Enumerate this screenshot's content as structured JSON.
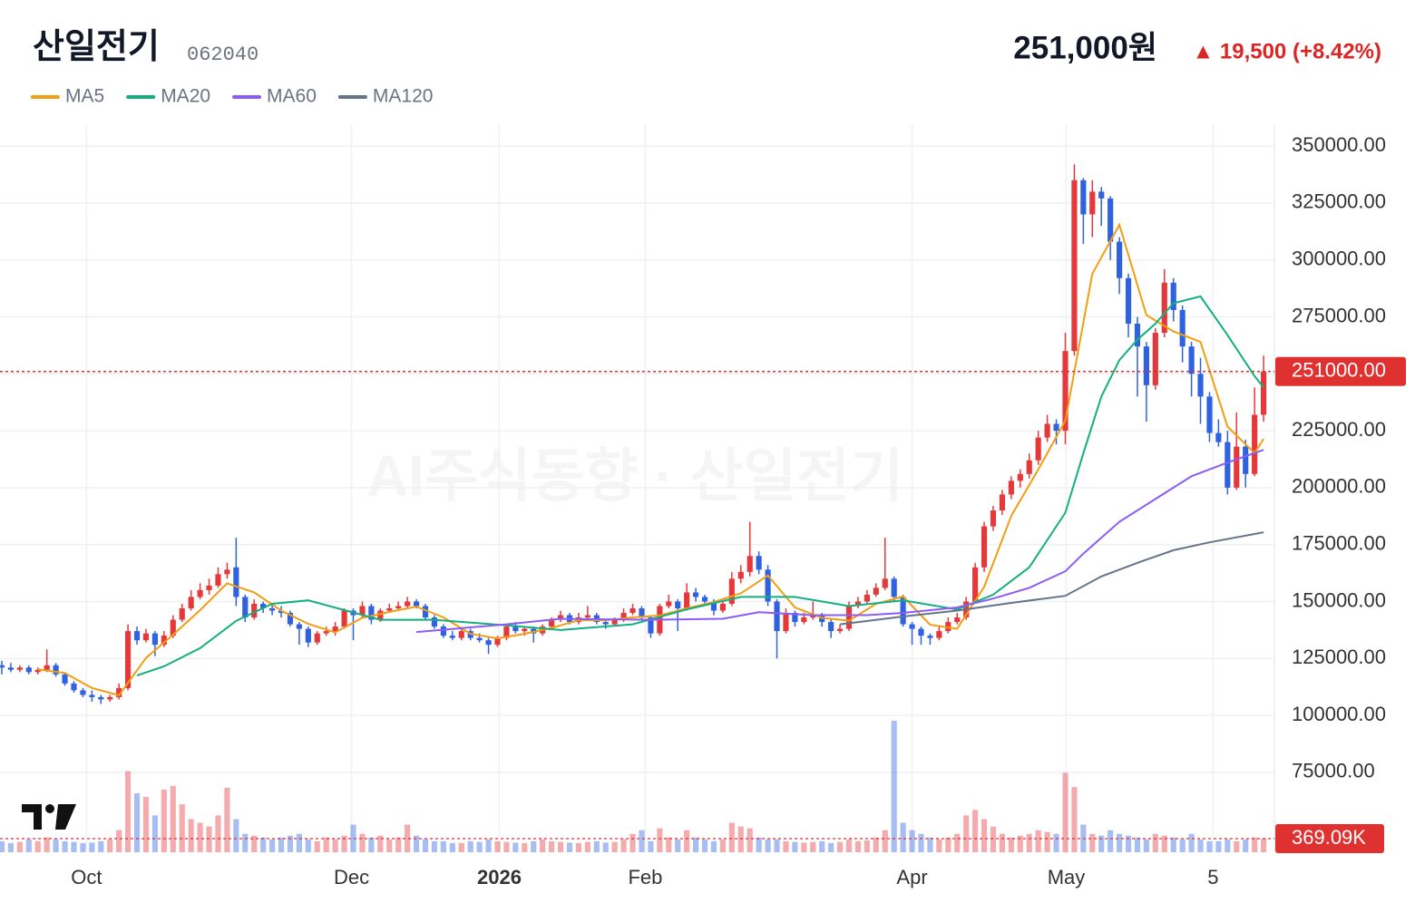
{
  "chart_data": {
    "type": "candlestick",
    "title": "산일전기",
    "subtitle": "062040",
    "price_text": "251,000원",
    "change_text": "▲ 19,500 (+8.42%)",
    "watermark": "AI주식동향 · 산일전기",
    "up_color": "#e5383b",
    "down_color": "#2f62e0",
    "xlim": [
      -0.2,
      141.2
    ],
    "xticks": [
      {
        "value": 9.4,
        "label": "Oct"
      },
      {
        "value": 38.8,
        "label": "Dec"
      },
      {
        "value": 55.2,
        "label": "2026",
        "bold": true
      },
      {
        "value": 71.4,
        "label": "Feb"
      },
      {
        "value": 101,
        "label": "Apr"
      },
      {
        "value": 118.1,
        "label": "May"
      },
      {
        "value": 134.4,
        "label": "5"
      }
    ],
    "ylim": [
      39900,
      359600
    ],
    "yticks": [
      {
        "value": 75000,
        "label": "75000.00"
      },
      {
        "value": 100000,
        "label": "100000.00"
      },
      {
        "value": 125000,
        "label": "125000.00"
      },
      {
        "value": 150000,
        "label": "150000.00"
      },
      {
        "value": 175000,
        "label": "175000.00"
      },
      {
        "value": 200000,
        "label": "200000.00"
      },
      {
        "value": 225000,
        "label": "225000.00"
      },
      {
        "value": 250000,
        "label": "250000.00"
      },
      {
        "value": 275000,
        "label": "275000.00"
      },
      {
        "value": 300000,
        "label": "300000.00"
      },
      {
        "value": 325000,
        "label": "325000.00"
      },
      {
        "value": 350000,
        "label": "350000.00"
      }
    ],
    "grid": true,
    "price_line": {
      "value": 251000,
      "label": "251000.00",
      "color": "#e03131"
    },
    "ohlc": [
      [
        122000,
        124000,
        118000,
        121000
      ],
      [
        121000,
        123000,
        119000,
        120000
      ],
      [
        120000,
        122000,
        119000,
        121000
      ],
      [
        121000,
        122000,
        118000,
        119000
      ],
      [
        119000,
        121000,
        118000,
        120000
      ],
      [
        120000,
        129000,
        119000,
        122000
      ],
      [
        122000,
        123000,
        117000,
        118000
      ],
      [
        118000,
        119000,
        113000,
        114000
      ],
      [
        114000,
        115000,
        110000,
        111000
      ],
      [
        111000,
        112000,
        108000,
        109000
      ],
      [
        109000,
        111000,
        106000,
        108000
      ],
      [
        108000,
        109000,
        105000,
        107000
      ],
      [
        107000,
        109000,
        106000,
        108000
      ],
      [
        108000,
        114000,
        107000,
        112000
      ],
      [
        112000,
        140000,
        111000,
        137000
      ],
      [
        137000,
        139000,
        131000,
        133000
      ],
      [
        133000,
        138000,
        132000,
        136000
      ],
      [
        136000,
        137000,
        126000,
        131000
      ],
      [
        131000,
        137000,
        130000,
        135000
      ],
      [
        135000,
        144000,
        134000,
        142000
      ],
      [
        142000,
        149000,
        141000,
        147000
      ],
      [
        147000,
        155000,
        146000,
        152000
      ],
      [
        152000,
        158000,
        151000,
        155000
      ],
      [
        155000,
        160000,
        153000,
        157000
      ],
      [
        157000,
        165000,
        156000,
        162000
      ],
      [
        162000,
        167000,
        160000,
        164000
      ],
      [
        165000,
        178000,
        148000,
        152000
      ],
      [
        152000,
        153000,
        141000,
        143000
      ],
      [
        143000,
        151000,
        142000,
        149000
      ],
      [
        149000,
        150000,
        145000,
        147000
      ],
      [
        147000,
        149000,
        144000,
        146000
      ],
      [
        146000,
        148000,
        143000,
        145000
      ],
      [
        145000,
        146000,
        139000,
        140000
      ],
      [
        140000,
        141000,
        131000,
        138000
      ],
      [
        138000,
        139000,
        130000,
        132000
      ],
      [
        132000,
        137000,
        131000,
        136000
      ],
      [
        136000,
        139000,
        135000,
        137000
      ],
      [
        137000,
        141000,
        135000,
        139000
      ],
      [
        139000,
        147000,
        138000,
        146000
      ],
      [
        146000,
        147000,
        133000,
        144000
      ],
      [
        144000,
        150000,
        143000,
        148000
      ],
      [
        148000,
        149000,
        140000,
        142000
      ],
      [
        142000,
        147000,
        141000,
        146000
      ],
      [
        146000,
        149000,
        145000,
        147000
      ],
      [
        147000,
        150000,
        146000,
        148000
      ],
      [
        148000,
        152000,
        147000,
        150000
      ],
      [
        150000,
        151000,
        147000,
        148000
      ],
      [
        148000,
        149000,
        142000,
        143000
      ],
      [
        143000,
        144000,
        138000,
        139000
      ],
      [
        139000,
        140000,
        134000,
        135000
      ],
      [
        135000,
        137000,
        133000,
        134000
      ],
      [
        134000,
        138000,
        133000,
        137000
      ],
      [
        137000,
        138000,
        133000,
        134000
      ],
      [
        134000,
        136000,
        132000,
        133000
      ],
      [
        133000,
        134000,
        127000,
        131000
      ],
      [
        131000,
        135000,
        130000,
        134000
      ],
      [
        134000,
        140000,
        133000,
        139000
      ],
      [
        139000,
        141000,
        136000,
        137000
      ],
      [
        137000,
        139000,
        135000,
        138000
      ],
      [
        138000,
        139000,
        132000,
        136000
      ],
      [
        136000,
        140000,
        135000,
        139000
      ],
      [
        139000,
        143000,
        138000,
        142000
      ],
      [
        142000,
        146000,
        141000,
        144000
      ],
      [
        144000,
        145000,
        140000,
        141000
      ],
      [
        141000,
        145000,
        140000,
        143000
      ],
      [
        143000,
        148000,
        142000,
        144000
      ],
      [
        144000,
        145000,
        140000,
        141000
      ],
      [
        141000,
        142000,
        138000,
        140000
      ],
      [
        140000,
        143000,
        139000,
        142000
      ],
      [
        142000,
        147000,
        141000,
        145000
      ],
      [
        145000,
        149000,
        144000,
        147000
      ],
      [
        147000,
        148000,
        142000,
        143000
      ],
      [
        143000,
        144000,
        134000,
        136000
      ],
      [
        136000,
        149000,
        135000,
        148000
      ],
      [
        148000,
        153000,
        147000,
        150000
      ],
      [
        150000,
        151000,
        137000,
        147000
      ],
      [
        147000,
        158000,
        146000,
        154000
      ],
      [
        154000,
        156000,
        150000,
        152000
      ],
      [
        152000,
        153000,
        148000,
        150000
      ],
      [
        150000,
        151000,
        144000,
        146000
      ],
      [
        146000,
        150000,
        145000,
        149000
      ],
      [
        149000,
        163000,
        148000,
        160000
      ],
      [
        160000,
        166000,
        158000,
        163000
      ],
      [
        163000,
        185000,
        161000,
        170000
      ],
      [
        170000,
        172000,
        162000,
        164000
      ],
      [
        164000,
        166000,
        148000,
        150000
      ],
      [
        150000,
        151000,
        125000,
        137000
      ],
      [
        137000,
        147000,
        136000,
        145000
      ],
      [
        145000,
        146000,
        139000,
        141000
      ],
      [
        141000,
        145000,
        140000,
        143000
      ],
      [
        143000,
        150000,
        142000,
        144000
      ],
      [
        144000,
        145000,
        139000,
        141000
      ],
      [
        141000,
        142000,
        134000,
        137000
      ],
      [
        137000,
        140000,
        136000,
        138000
      ],
      [
        138000,
        150000,
        137000,
        148000
      ],
      [
        148000,
        152000,
        147000,
        150000
      ],
      [
        150000,
        155000,
        149000,
        153000
      ],
      [
        153000,
        158000,
        152000,
        156000
      ],
      [
        156000,
        178000,
        155000,
        160000
      ],
      [
        160000,
        161000,
        150000,
        152000
      ],
      [
        152000,
        153000,
        139000,
        140000
      ],
      [
        140000,
        141000,
        131000,
        138000
      ],
      [
        138000,
        139000,
        131000,
        135000
      ],
      [
        135000,
        136000,
        131000,
        134000
      ],
      [
        134000,
        139000,
        133000,
        137000
      ],
      [
        137000,
        143000,
        136000,
        141000
      ],
      [
        141000,
        145000,
        140000,
        143000
      ],
      [
        143000,
        152000,
        142000,
        150000
      ],
      [
        150000,
        167000,
        149000,
        165000
      ],
      [
        165000,
        185000,
        163000,
        183000
      ],
      [
        183000,
        192000,
        181000,
        190000
      ],
      [
        190000,
        199000,
        188000,
        197000
      ],
      [
        197000,
        205000,
        195000,
        203000
      ],
      [
        203000,
        208000,
        200000,
        206000
      ],
      [
        206000,
        215000,
        204000,
        212000
      ],
      [
        212000,
        225000,
        210000,
        222000
      ],
      [
        222000,
        232000,
        220000,
        228000
      ],
      [
        228000,
        230000,
        219000,
        225000
      ],
      [
        225000,
        268000,
        219000,
        260000
      ],
      [
        260000,
        342000,
        258000,
        335000
      ],
      [
        335000,
        336000,
        307000,
        320000
      ],
      [
        320000,
        335000,
        310000,
        330000
      ],
      [
        330000,
        332000,
        315000,
        327000
      ],
      [
        327000,
        328000,
        300000,
        308000
      ],
      [
        308000,
        310000,
        285000,
        292000
      ],
      [
        292000,
        294000,
        266000,
        272000
      ],
      [
        272000,
        275000,
        240000,
        262000
      ],
      [
        262000,
        264000,
        229000,
        245000
      ],
      [
        245000,
        270000,
        243000,
        268000
      ],
      [
        268000,
        296000,
        266000,
        290000
      ],
      [
        290000,
        292000,
        273000,
        278000
      ],
      [
        278000,
        280000,
        255000,
        262000
      ],
      [
        262000,
        264000,
        240000,
        250000
      ],
      [
        250000,
        257000,
        228000,
        240000
      ],
      [
        240000,
        242000,
        220000,
        224000
      ],
      [
        224000,
        230000,
        218000,
        220000
      ],
      [
        220000,
        225000,
        197000,
        200000
      ],
      [
        200000,
        233000,
        199000,
        218000
      ],
      [
        218000,
        221000,
        200000,
        206000
      ],
      [
        206000,
        244000,
        205000,
        232000
      ],
      [
        232000,
        258000,
        229000,
        251000
      ]
    ],
    "volume": {
      "values": [
        300000,
        250000,
        280000,
        350000,
        300000,
        400000,
        350000,
        300000,
        280000,
        250000,
        260000,
        300000,
        350000,
        600000,
        2200000,
        1600000,
        1500000,
        1000000,
        1700000,
        1800000,
        1300000,
        900000,
        800000,
        700000,
        1000000,
        1750000,
        900000,
        500000,
        450000,
        400000,
        350000,
        400000,
        450000,
        500000,
        350000,
        300000,
        400000,
        350000,
        450000,
        750000,
        500000,
        400000,
        450000,
        350000,
        400000,
        750000,
        450000,
        350000,
        300000,
        300000,
        250000,
        250000,
        300000,
        280000,
        350000,
        300000,
        280000,
        260000,
        250000,
        300000,
        350000,
        300000,
        280000,
        260000,
        250000,
        280000,
        300000,
        260000,
        280000,
        350000,
        500000,
        600000,
        300000,
        650000,
        400000,
        350000,
        600000,
        400000,
        350000,
        300000,
        350000,
        800000,
        700000,
        650000,
        400000,
        350000,
        350000,
        300000,
        280000,
        260000,
        280000,
        300000,
        250000,
        280000,
        350000,
        300000,
        320000,
        400000,
        600000,
        3570000,
        800000,
        600000,
        500000,
        400000,
        350000,
        400000,
        500000,
        1000000,
        1150000,
        900000,
        700000,
        500000,
        400000,
        450000,
        500000,
        600000,
        550000,
        500000,
        2160000,
        1770000,
        750000,
        500000,
        450000,
        600000,
        500000,
        450000,
        400000,
        350000,
        500000,
        450000,
        400000,
        350000,
        500000,
        350000,
        300000,
        300000,
        350000,
        300000,
        350000,
        400000,
        369090
      ],
      "last_label": "369.09K"
    },
    "series": [
      {
        "name": "MA5",
        "color": "#f29d12",
        "x": [
          4,
          7,
          10,
          13,
          16,
          19,
          22,
          25,
          28,
          31,
          34,
          37,
          40,
          43,
          46,
          49,
          52,
          55,
          58,
          61,
          64,
          67,
          70,
          73,
          76,
          79,
          82,
          85,
          88,
          91,
          94,
          97,
          100,
          103,
          106,
          109,
          112,
          115,
          118,
          121,
          124,
          127,
          130,
          133,
          136,
          139,
          140
        ],
        "values": [
          120200,
          118600,
          112000,
          108800,
          125200,
          135400,
          146200,
          158000,
          154000,
          146000,
          140200,
          136400,
          142800,
          145400,
          147800,
          143000,
          135800,
          133800,
          135800,
          138400,
          141800,
          141800,
          143000,
          143800,
          147000,
          149800,
          153600,
          161400,
          147400,
          142800,
          141600,
          149000,
          152200,
          139800,
          138000,
          156400,
          187600,
          208000,
          229400,
          294000,
          315400,
          275800,
          268600,
          264000,
          226800,
          215200,
          221400
        ]
      },
      {
        "name": "MA20",
        "color": "#12b07e",
        "x": [
          15,
          18,
          22,
          26,
          30,
          34,
          42,
          48,
          56,
          62,
          70,
          76,
          82,
          88,
          94,
          100,
          106,
          110,
          114,
          118,
          120,
          122,
          124,
          126,
          128,
          130,
          133,
          136,
          139,
          140
        ],
        "values": [
          117500,
          121500,
          129500,
          141500,
          149000,
          150500,
          142000,
          142000,
          139500,
          137500,
          140000,
          146500,
          152000,
          152000,
          148000,
          150500,
          146500,
          153000,
          165000,
          189000,
          215000,
          240000,
          256000,
          265000,
          272000,
          281000,
          284000,
          267000,
          249000,
          244000
        ]
      },
      {
        "name": "MA60",
        "color": "#8b5cf6",
        "x": [
          46,
          56,
          62,
          72,
          80,
          84,
          90,
          96,
          100,
          106,
          110,
          114,
          118,
          120,
          124,
          128,
          132,
          136,
          140
        ],
        "values": [
          136600,
          140000,
          142400,
          142000,
          142400,
          145300,
          144000,
          144000,
          145000,
          147400,
          151300,
          156000,
          163300,
          171000,
          185000,
          195000,
          205000,
          211000,
          216600
        ]
      },
      {
        "name": "MA120",
        "color": "#64748b",
        "x": [
          93,
          100,
          106,
          112,
          118,
          122,
          126,
          130,
          134,
          140
        ],
        "values": [
          140000,
          143400,
          146000,
          149400,
          152500,
          161000,
          167000,
          172500,
          176000,
          180400
        ]
      }
    ]
  }
}
